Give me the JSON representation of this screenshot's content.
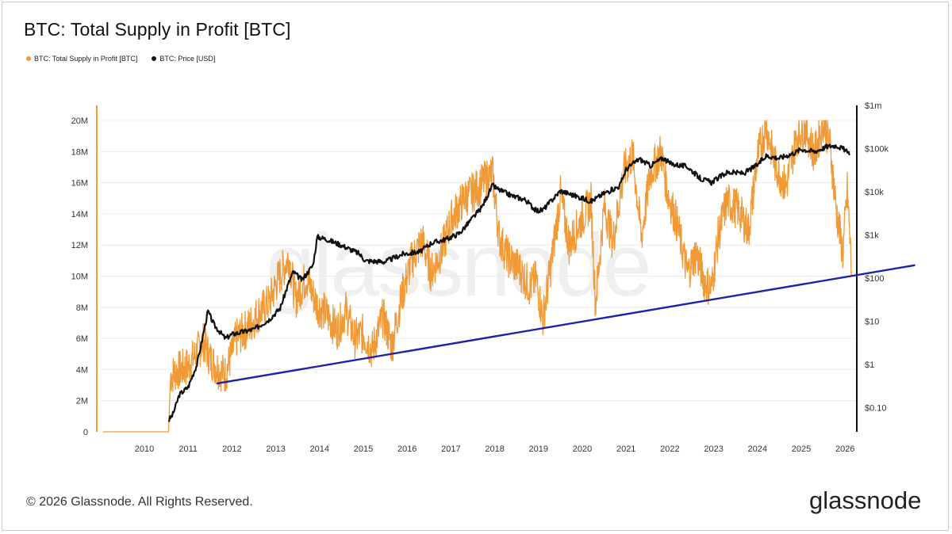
{
  "title": "BTC: Total Supply in Profit [BTC]",
  "watermark": "glassnode",
  "footer": "© 2026 Glassnode. All Rights Reserved.",
  "logo_text": "glassnode",
  "legend": [
    {
      "label": "BTC: Total Supply in Profit [BTC]",
      "color": "#F09A37"
    },
    {
      "label": "BTC: Price [USD]",
      "color": "#111111"
    }
  ],
  "chart_data": {
    "type": "line",
    "x_ticks": [
      "2010",
      "2011",
      "2012",
      "2013",
      "2014",
      "2015",
      "2016",
      "2017",
      "2018",
      "2019",
      "2020",
      "2021",
      "2022",
      "2023",
      "2024",
      "2025",
      "2026"
    ],
    "y_left_ticks": [
      "0",
      "2M",
      "4M",
      "6M",
      "8M",
      "10M",
      "12M",
      "14M",
      "16M",
      "18M",
      "20M"
    ],
    "y_right_ticks": [
      "$0.10",
      "$1",
      "$10",
      "$100",
      "$1k",
      "$10k",
      "$100k",
      "$1m"
    ],
    "ylim_left": [
      0,
      20000000
    ],
    "ylim_right_log10": [
      -1,
      6
    ],
    "grid": true,
    "legend_position": "top-left",
    "series": [
      {
        "name": "BTC: Total Supply in Profit [BTC]",
        "axis": "left",
        "color": "#F09A37",
        "x": [
          2009.05,
          2010.55,
          2010.6,
          2010.75,
          2011.0,
          2011.35,
          2011.5,
          2011.7,
          2011.85,
          2012.1,
          2012.4,
          2012.6,
          2012.85,
          2013.05,
          2013.3,
          2013.45,
          2013.7,
          2013.95,
          2014.15,
          2014.4,
          2014.6,
          2014.8,
          2015.0,
          2015.2,
          2015.45,
          2015.65,
          2015.85,
          2016.1,
          2016.35,
          2016.55,
          2016.8,
          2017.0,
          2017.3,
          2017.55,
          2017.8,
          2017.95,
          2018.1,
          2018.3,
          2018.55,
          2018.8,
          2018.95,
          2019.1,
          2019.35,
          2019.5,
          2019.7,
          2019.9,
          2020.2,
          2020.3,
          2020.5,
          2020.7,
          2020.95,
          2021.15,
          2021.35,
          2021.55,
          2021.8,
          2021.95,
          2022.15,
          2022.4,
          2022.6,
          2022.8,
          2022.95,
          2023.1,
          2023.3,
          2023.55,
          2023.8,
          2024.0,
          2024.2,
          2024.4,
          2024.65,
          2024.9,
          2025.1,
          2025.3,
          2025.5,
          2025.65,
          2025.8,
          2025.95,
          2026.05,
          2026.15
        ],
        "values": [
          0,
          0,
          3600000,
          3900000,
          4200000,
          5800000,
          4700000,
          4000000,
          3700000,
          6000000,
          6800000,
          7600000,
          8300000,
          9800000,
          11200000,
          8500000,
          9900000,
          8100000,
          7600000,
          6500000,
          7800000,
          6000000,
          6300000,
          5200000,
          7400000,
          5500000,
          8400000,
          11000000,
          12300000,
          10200000,
          11700000,
          13600000,
          15000000,
          15500000,
          16200000,
          16600000,
          12500000,
          11200000,
          10500000,
          9300000,
          9800000,
          7200000,
          12000000,
          15200000,
          12000000,
          13200000,
          14800000,
          8200000,
          14500000,
          12200000,
          16700000,
          17800000,
          12500000,
          16600000,
          18000000,
          15300000,
          13500000,
          10200000,
          11500000,
          9600000,
          9200000,
          12500000,
          14800000,
          14300000,
          12900000,
          17700000,
          19600000,
          17200000,
          15700000,
          19000000,
          19500000,
          17800000,
          19900000,
          18600000,
          14200000,
          11500000,
          15500000,
          10300000
        ]
      },
      {
        "name": "BTC: Price [USD]",
        "axis": "right",
        "color": "#111111",
        "x": [
          2010.55,
          2010.65,
          2010.8,
          2011.0,
          2011.2,
          2011.3,
          2011.45,
          2011.6,
          2011.85,
          2012.0,
          2012.5,
          2012.85,
          2013.1,
          2013.3,
          2013.4,
          2013.6,
          2013.85,
          2013.95,
          2014.15,
          2014.5,
          2014.9,
          2015.05,
          2015.5,
          2015.9,
          2016.3,
          2016.55,
          2016.9,
          2017.2,
          2017.5,
          2017.7,
          2017.95,
          2018.1,
          2018.4,
          2018.7,
          2018.95,
          2019.1,
          2019.5,
          2019.8,
          2020.2,
          2020.5,
          2020.85,
          2021.0,
          2021.3,
          2021.55,
          2021.85,
          2022.0,
          2022.4,
          2022.7,
          2022.95,
          2023.3,
          2023.7,
          2024.0,
          2024.2,
          2024.5,
          2024.85,
          2025.0,
          2025.3,
          2025.6,
          2025.8,
          2026.0,
          2026.1
        ],
        "values": [
          0.05,
          0.07,
          0.2,
          0.3,
          1.0,
          3.0,
          17,
          8,
          4,
          5,
          6.5,
          11,
          20,
          80,
          140,
          90,
          200,
          900,
          800,
          580,
          370,
          250,
          240,
          360,
          410,
          650,
          800,
          1100,
          2500,
          4300,
          14000,
          11000,
          8000,
          6500,
          3600,
          3800,
          10500,
          8300,
          6000,
          9200,
          13500,
          33000,
          58000,
          40000,
          61000,
          45000,
          38000,
          20000,
          16500,
          28000,
          27000,
          42000,
          68000,
          60000,
          80000,
          97000,
          85000,
          112000,
          118000,
          93000,
          70000
        ]
      },
      {
        "name": "",
        "axis": "left",
        "color": "#1E22A8",
        "x": [
          2011.65,
          2027.6
        ],
        "values": [
          3100000,
          10700000
        ]
      }
    ]
  }
}
